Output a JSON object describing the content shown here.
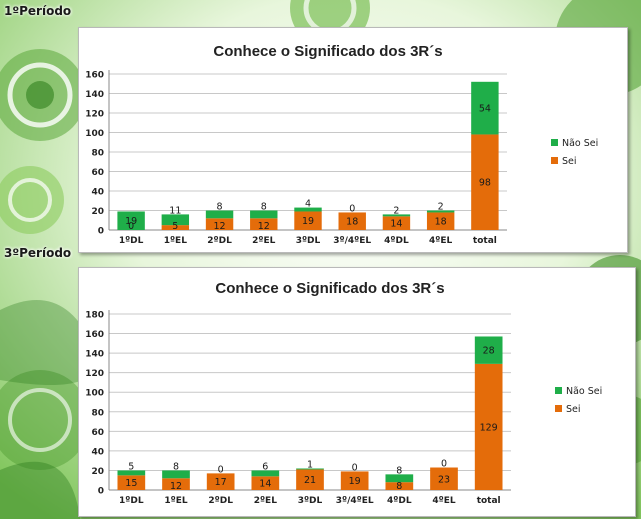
{
  "colors": {
    "sei": "#e46c0a",
    "nao_sei": "#1fae49",
    "grid": "#c8c8c8"
  },
  "periods": [
    {
      "label": "1ºPeríodo"
    },
    {
      "label": "3ºPeríodo"
    }
  ],
  "chart_data": [
    {
      "type": "bar",
      "stacked": true,
      "title": "Conhece o Significado dos 3R´s",
      "categories": [
        "1ºDL",
        "1ºEL",
        "2ºDL",
        "2ºEL",
        "3ºDL",
        "3º/4ºEL",
        "4ºDL",
        "4ºEL",
        "total"
      ],
      "series": [
        {
          "name": "Sei",
          "values": [
            0,
            5,
            12,
            12,
            19,
            18,
            14,
            18,
            98
          ]
        },
        {
          "name": "Não Sei",
          "values": [
            19,
            11,
            8,
            8,
            4,
            0,
            2,
            2,
            54
          ]
        }
      ],
      "ylim": [
        0,
        160
      ],
      "yticks": [
        0,
        20,
        40,
        60,
        80,
        100,
        120,
        140,
        160
      ],
      "grid": true,
      "legend": "right"
    },
    {
      "type": "bar",
      "stacked": true,
      "title": "Conhece o Significado dos 3R´s",
      "categories": [
        "1ºDL",
        "1ºEL",
        "2ºDL",
        "2ºEL",
        "3ºDL",
        "3º/4ºEL",
        "4ºDL",
        "4ºEL",
        "total"
      ],
      "series": [
        {
          "name": "Sei",
          "values": [
            15,
            12,
            17,
            14,
            21,
            19,
            8,
            23,
            129
          ]
        },
        {
          "name": "Não Sei",
          "values": [
            5,
            8,
            0,
            6,
            1,
            0,
            8,
            0,
            28
          ]
        }
      ],
      "ylim": [
        0,
        180
      ],
      "yticks": [
        0,
        20,
        40,
        60,
        80,
        100,
        120,
        140,
        160,
        180
      ],
      "grid": true,
      "legend": "right"
    }
  ]
}
